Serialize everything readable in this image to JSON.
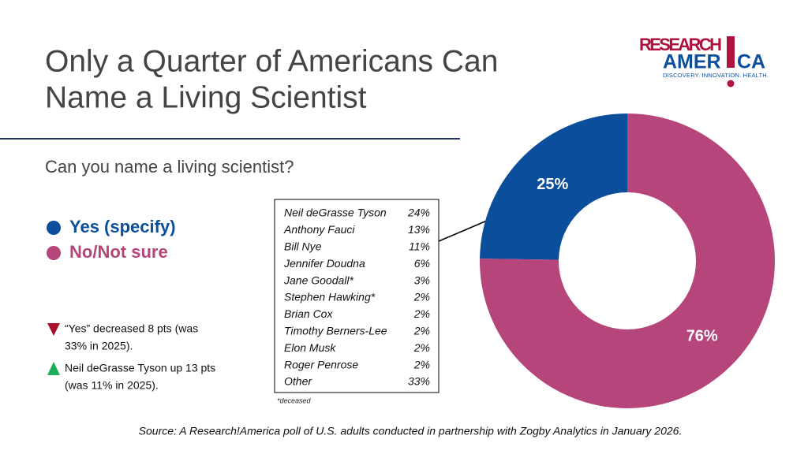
{
  "chart_data": {
    "type": "donut",
    "title": [
      "Only a Quarter of Americans Can",
      "Name a Living Scientist"
    ],
    "subtitle": "Can you name a living scientist?",
    "series": [
      {
        "name": "Yes (specify)",
        "color": "#0b4f9c",
        "value": 25,
        "value_label": "25%"
      },
      {
        "name": "No/Not sure",
        "color": "#b5457a",
        "value": 76,
        "value_label": "76%"
      }
    ]
  },
  "logo": {
    "line1": "RESEARCH",
    "line2a": "AMER",
    "line2b": "CA",
    "tagline": "DISCOVERY. INNOVATION. HEALTH."
  },
  "table": {
    "rows": [
      [
        "Neil deGrasse Tyson",
        "24%"
      ],
      [
        "Anthony Fauci",
        "13%"
      ],
      [
        "Bill Nye",
        "11%"
      ],
      [
        "Jennifer Doudna",
        "6%"
      ],
      [
        "Jane Goodall*",
        "3%"
      ],
      [
        "Stephen Hawking*",
        "2%"
      ],
      [
        "Brian Cox",
        "2%"
      ],
      [
        "Timothy Berners-Lee",
        "2%"
      ],
      [
        "Elon Musk",
        "2%"
      ],
      [
        "Roger Penrose",
        "2%"
      ],
      [
        "Other",
        "33%"
      ]
    ],
    "footnote": "*deceased"
  },
  "notes": [
    {
      "lines": [
        "“Yes” decreased 8 pts (was",
        "33% in 2025)."
      ]
    },
    {
      "lines": [
        "Neil deGrasse Tyson up 13 pts",
        "(was 11% in 2025)."
      ]
    }
  ],
  "source": "Source: A Research!America poll of U.S. adults conducted in partnership with Zogby Analytics in January 2026."
}
